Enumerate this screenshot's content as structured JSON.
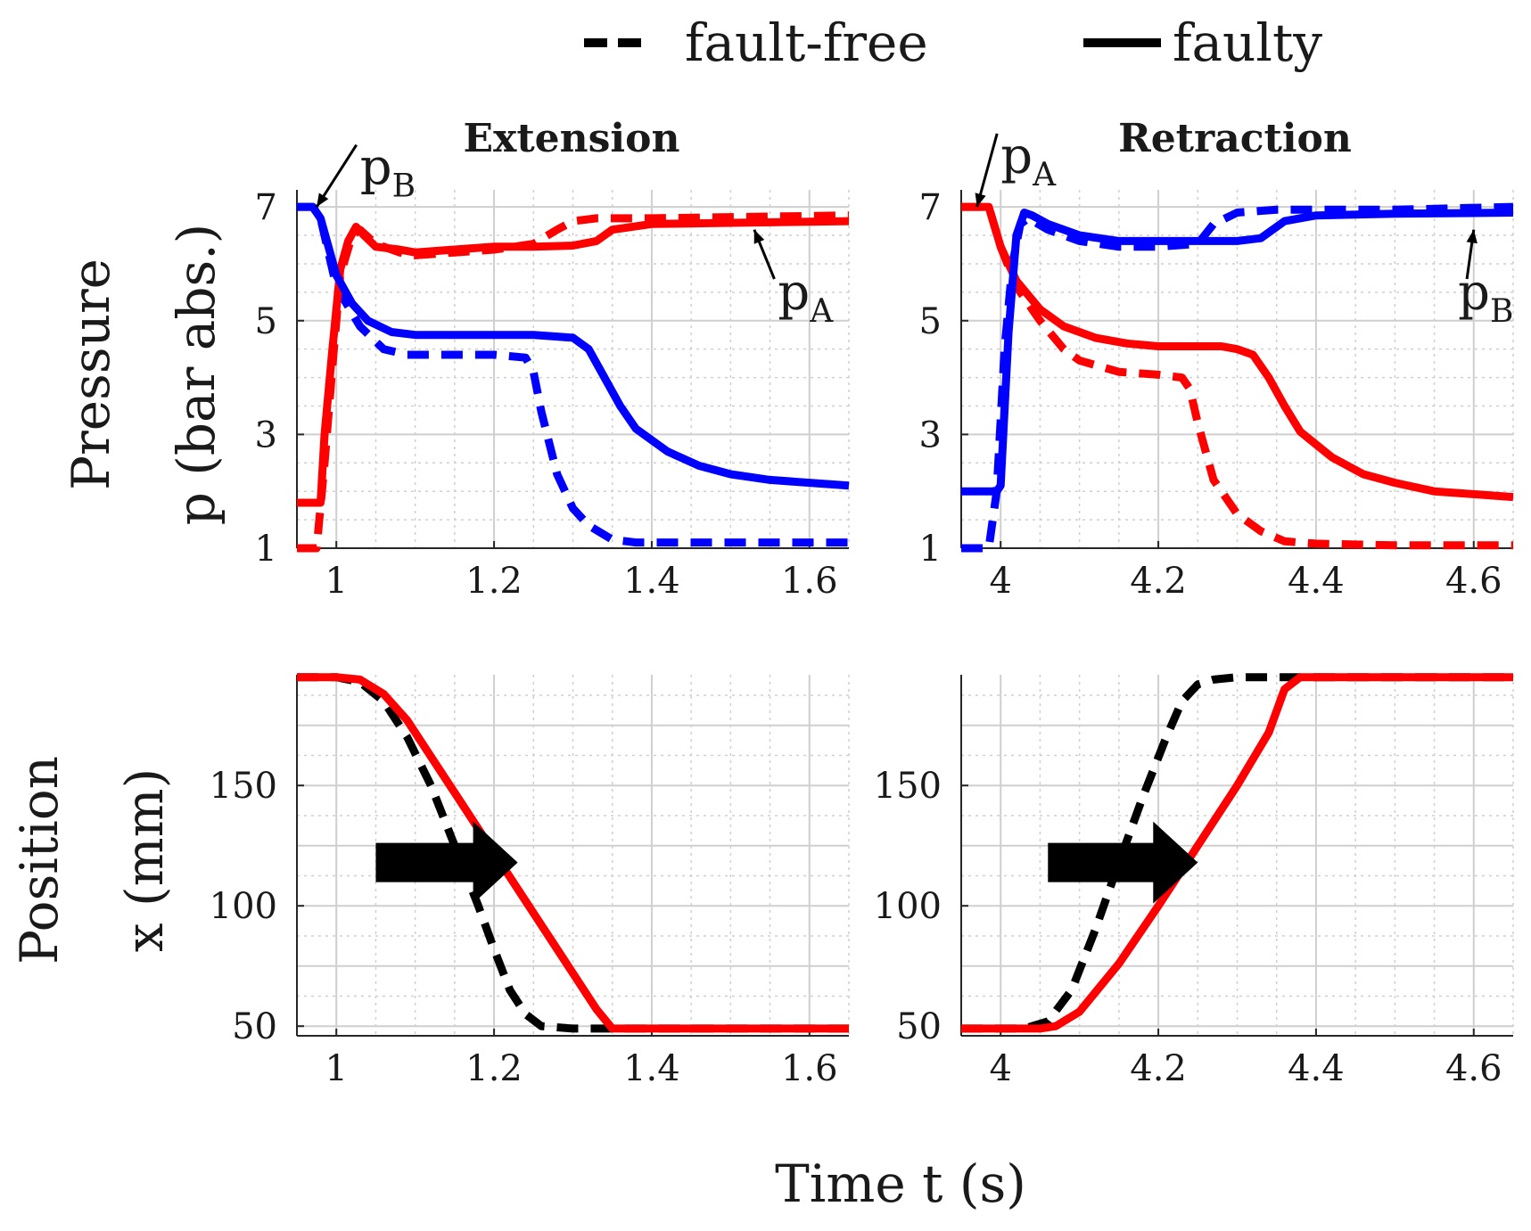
{
  "figure": {
    "xlabel": "Time t (s)",
    "legend": [
      {
        "label": "fault-free",
        "style": "dashed",
        "color": "#000000"
      },
      {
        "label": "faulty",
        "style": "solid",
        "color": "#000000"
      }
    ],
    "colors": {
      "pA": "#ff0000",
      "pB": "#0000ff",
      "position": "#000000"
    }
  },
  "chart_data": [
    {
      "id": "extension-pressure",
      "type": "line",
      "title": "Extension",
      "ylabel_line1": "Pressure",
      "ylabel_line2": "p (bar abs.)",
      "xlim": [
        0.95,
        1.65
      ],
      "ylim": [
        1,
        7.3
      ],
      "xticks": [
        1,
        1.2,
        1.4,
        1.6
      ],
      "xtick_labels": [
        "1",
        "1.2",
        "1.4",
        "1.6"
      ],
      "yticks": [
        1,
        3,
        5,
        7
      ],
      "ytick_labels": [
        "1",
        "3",
        "5",
        "7"
      ],
      "xminor_step": 0.05,
      "yminor_step": 0.5,
      "annotations": [
        {
          "base": "p",
          "sub": "B",
          "target": [
            0.975,
            7.0
          ],
          "text_at": [
            1.03,
            7.4
          ]
        },
        {
          "base": "p",
          "sub": "A",
          "target": [
            1.53,
            6.6
          ],
          "text_at": [
            1.56,
            5.2
          ]
        }
      ],
      "series": [
        {
          "name": "pA fault-free",
          "signal": "pA",
          "style": "dashed",
          "color": "#ff0000",
          "x": [
            0.95,
            0.975,
            0.985,
            0.995,
            1.005,
            1.02,
            1.03,
            1.05,
            1.08,
            1.1,
            1.15,
            1.2,
            1.25,
            1.28,
            1.3,
            1.33,
            1.36,
            1.4,
            1.5,
            1.65
          ],
          "y": [
            1.0,
            1.0,
            2.5,
            4.2,
            5.8,
            6.5,
            6.6,
            6.35,
            6.2,
            6.15,
            6.2,
            6.25,
            6.35,
            6.6,
            6.75,
            6.8,
            6.8,
            6.8,
            6.82,
            6.85
          ]
        },
        {
          "name": "pA faulty",
          "signal": "pA",
          "style": "solid",
          "color": "#ff0000",
          "x": [
            0.95,
            0.98,
            0.985,
            0.995,
            1.005,
            1.015,
            1.025,
            1.035,
            1.05,
            1.08,
            1.1,
            1.15,
            1.2,
            1.25,
            1.3,
            1.33,
            1.35,
            1.4,
            1.5,
            1.65
          ],
          "y": [
            1.8,
            1.8,
            3.0,
            4.5,
            5.9,
            6.4,
            6.65,
            6.5,
            6.3,
            6.25,
            6.2,
            6.25,
            6.3,
            6.3,
            6.32,
            6.4,
            6.6,
            6.7,
            6.72,
            6.75
          ]
        },
        {
          "name": "pB fault-free",
          "signal": "pB",
          "style": "dashed",
          "color": "#0000ff",
          "x": [
            0.95,
            0.97,
            0.98,
            1.0,
            1.03,
            1.06,
            1.09,
            1.12,
            1.15,
            1.2,
            1.24,
            1.25,
            1.26,
            1.28,
            1.3,
            1.32,
            1.35,
            1.38,
            1.45,
            1.65
          ],
          "y": [
            7.0,
            7.0,
            6.8,
            5.6,
            4.9,
            4.5,
            4.4,
            4.4,
            4.4,
            4.4,
            4.35,
            4.1,
            3.4,
            2.3,
            1.7,
            1.4,
            1.15,
            1.1,
            1.1,
            1.1
          ]
        },
        {
          "name": "pB faulty",
          "signal": "pB",
          "style": "solid",
          "color": "#0000ff",
          "x": [
            0.95,
            0.97,
            0.98,
            1.0,
            1.02,
            1.04,
            1.07,
            1.1,
            1.15,
            1.2,
            1.25,
            1.3,
            1.32,
            1.34,
            1.36,
            1.38,
            1.42,
            1.46,
            1.5,
            1.55,
            1.6,
            1.65
          ],
          "y": [
            7.0,
            7.0,
            6.8,
            5.8,
            5.3,
            5.0,
            4.8,
            4.75,
            4.75,
            4.75,
            4.75,
            4.7,
            4.5,
            4.0,
            3.5,
            3.1,
            2.7,
            2.45,
            2.3,
            2.2,
            2.15,
            2.1
          ]
        }
      ]
    },
    {
      "id": "retraction-pressure",
      "type": "line",
      "title": "Retraction",
      "xlim": [
        3.95,
        4.65
      ],
      "ylim": [
        1,
        7.3
      ],
      "xticks": [
        4,
        4.2,
        4.4,
        4.6
      ],
      "xtick_labels": [
        "4",
        "4.2",
        "4.4",
        "4.6"
      ],
      "yticks": [
        1,
        3,
        5,
        7
      ],
      "ytick_labels": [
        "1",
        "3",
        "5",
        "7"
      ],
      "xminor_step": 0.05,
      "yminor_step": 0.5,
      "annotations": [
        {
          "base": "p",
          "sub": "A",
          "target": [
            3.97,
            7.0
          ],
          "text_at": [
            4.0,
            7.6
          ]
        },
        {
          "base": "p",
          "sub": "B",
          "target": [
            4.6,
            6.6
          ],
          "text_at": [
            4.58,
            5.2
          ]
        }
      ],
      "series": [
        {
          "name": "pA fault-free",
          "signal": "pA",
          "style": "dashed",
          "color": "#ff0000",
          "x": [
            3.95,
            3.985,
            4.0,
            4.02,
            4.05,
            4.08,
            4.1,
            4.15,
            4.2,
            4.23,
            4.24,
            4.25,
            4.27,
            4.3,
            4.33,
            4.36,
            4.4,
            4.5,
            4.65
          ],
          "y": [
            7.0,
            7.0,
            6.3,
            5.6,
            5.0,
            4.5,
            4.3,
            4.1,
            4.05,
            4.0,
            3.8,
            3.2,
            2.2,
            1.6,
            1.3,
            1.12,
            1.08,
            1.05,
            1.05
          ]
        },
        {
          "name": "pA faulty",
          "signal": "pA",
          "style": "solid",
          "color": "#ff0000",
          "x": [
            3.95,
            3.985,
            4.0,
            4.02,
            4.05,
            4.08,
            4.12,
            4.16,
            4.2,
            4.25,
            4.28,
            4.3,
            4.32,
            4.34,
            4.36,
            4.38,
            4.42,
            4.46,
            4.5,
            4.55,
            4.6,
            4.65
          ],
          "y": [
            7.0,
            7.0,
            6.3,
            5.7,
            5.2,
            4.9,
            4.7,
            4.6,
            4.55,
            4.55,
            4.55,
            4.5,
            4.4,
            4.0,
            3.5,
            3.05,
            2.6,
            2.3,
            2.15,
            2.0,
            1.95,
            1.9
          ]
        },
        {
          "name": "pB fault-free",
          "signal": "pB",
          "style": "dashed",
          "color": "#0000ff",
          "x": [
            3.95,
            3.985,
            3.995,
            4.005,
            4.015,
            4.025,
            4.035,
            4.06,
            4.1,
            4.15,
            4.2,
            4.25,
            4.27,
            4.3,
            4.35,
            4.4,
            4.5,
            4.65
          ],
          "y": [
            1.0,
            1.0,
            2.0,
            4.5,
            6.0,
            6.7,
            6.8,
            6.6,
            6.4,
            6.3,
            6.3,
            6.35,
            6.7,
            6.9,
            6.95,
            6.95,
            6.95,
            7.0
          ]
        },
        {
          "name": "pB faulty",
          "signal": "pB",
          "style": "solid",
          "color": "#0000ff",
          "x": [
            3.95,
            3.995,
            4.0,
            4.01,
            4.02,
            4.03,
            4.04,
            4.06,
            4.1,
            4.15,
            4.2,
            4.25,
            4.3,
            4.33,
            4.36,
            4.4,
            4.5,
            4.65
          ],
          "y": [
            2.0,
            2.0,
            2.1,
            4.8,
            6.5,
            6.9,
            6.85,
            6.7,
            6.5,
            6.4,
            6.4,
            6.4,
            6.4,
            6.45,
            6.75,
            6.85,
            6.88,
            6.9
          ]
        }
      ]
    },
    {
      "id": "extension-position",
      "type": "line",
      "ylabel_line1": "Position",
      "ylabel_line2": "x (mm)",
      "xlim": [
        0.95,
        1.65
      ],
      "ylim": [
        46,
        196
      ],
      "xticks": [
        1,
        1.2,
        1.4,
        1.6
      ],
      "xtick_labels": [
        "1",
        "1.2",
        "1.4",
        "1.6"
      ],
      "yticks": [
        50,
        100,
        150
      ],
      "ytick_labels": [
        "50",
        "100",
        "150"
      ],
      "yticks_grid": [
        50,
        75,
        100,
        125,
        150,
        175
      ],
      "xminor_step": 0.05,
      "yminor_step": 12.5,
      "arrow": {
        "from": [
          1.05,
          118
        ],
        "to": [
          1.23,
          118
        ]
      },
      "series": [
        {
          "name": "x fault-free",
          "style": "dashed",
          "color": "#000000",
          "x": [
            0.95,
            1.0,
            1.03,
            1.06,
            1.09,
            1.12,
            1.15,
            1.18,
            1.2,
            1.22,
            1.24,
            1.26,
            1.3,
            1.35,
            1.45,
            1.65
          ],
          "y": [
            195,
            195,
            193,
            185,
            170,
            150,
            125,
            100,
            82,
            65,
            55,
            50,
            49,
            49,
            49,
            49
          ]
        },
        {
          "name": "x faulty",
          "style": "solid",
          "color": "#ff0000",
          "x": [
            0.95,
            1.0,
            1.03,
            1.06,
            1.09,
            1.12,
            1.15,
            1.2,
            1.25,
            1.3,
            1.33,
            1.35,
            1.4,
            1.5,
            1.65
          ],
          "y": [
            195,
            195,
            194,
            188,
            177,
            162,
            147,
            122,
            97,
            72,
            57,
            49,
            49,
            49,
            49
          ]
        }
      ]
    },
    {
      "id": "retraction-position",
      "type": "line",
      "xlim": [
        3.95,
        4.65
      ],
      "ylim": [
        46,
        196
      ],
      "xticks": [
        4,
        4.2,
        4.4,
        4.6
      ],
      "xtick_labels": [
        "4",
        "4.2",
        "4.4",
        "4.6"
      ],
      "yticks": [
        50,
        100,
        150
      ],
      "ytick_labels": [
        "50",
        "100",
        "150"
      ],
      "yticks_grid": [
        50,
        75,
        100,
        125,
        150,
        175
      ],
      "xminor_step": 0.05,
      "yminor_step": 12.5,
      "arrow": {
        "from": [
          4.06,
          118
        ],
        "to": [
          4.25,
          118
        ]
      },
      "series": [
        {
          "name": "x fault-free",
          "style": "dashed",
          "color": "#000000",
          "x": [
            3.95,
            4.03,
            4.06,
            4.09,
            4.12,
            4.15,
            4.18,
            4.21,
            4.23,
            4.25,
            4.27,
            4.3,
            4.4,
            4.65
          ],
          "y": [
            49,
            49,
            52,
            65,
            90,
            118,
            145,
            170,
            185,
            192,
            194,
            195,
            195,
            195
          ]
        },
        {
          "name": "x faulty",
          "style": "solid",
          "color": "#ff0000",
          "x": [
            3.95,
            4.05,
            4.07,
            4.1,
            4.15,
            4.2,
            4.25,
            4.3,
            4.34,
            4.36,
            4.38,
            4.45,
            4.65
          ],
          "y": [
            49,
            49,
            50,
            56,
            76,
            100,
            125,
            150,
            172,
            190,
            195,
            195,
            195
          ]
        }
      ]
    }
  ]
}
